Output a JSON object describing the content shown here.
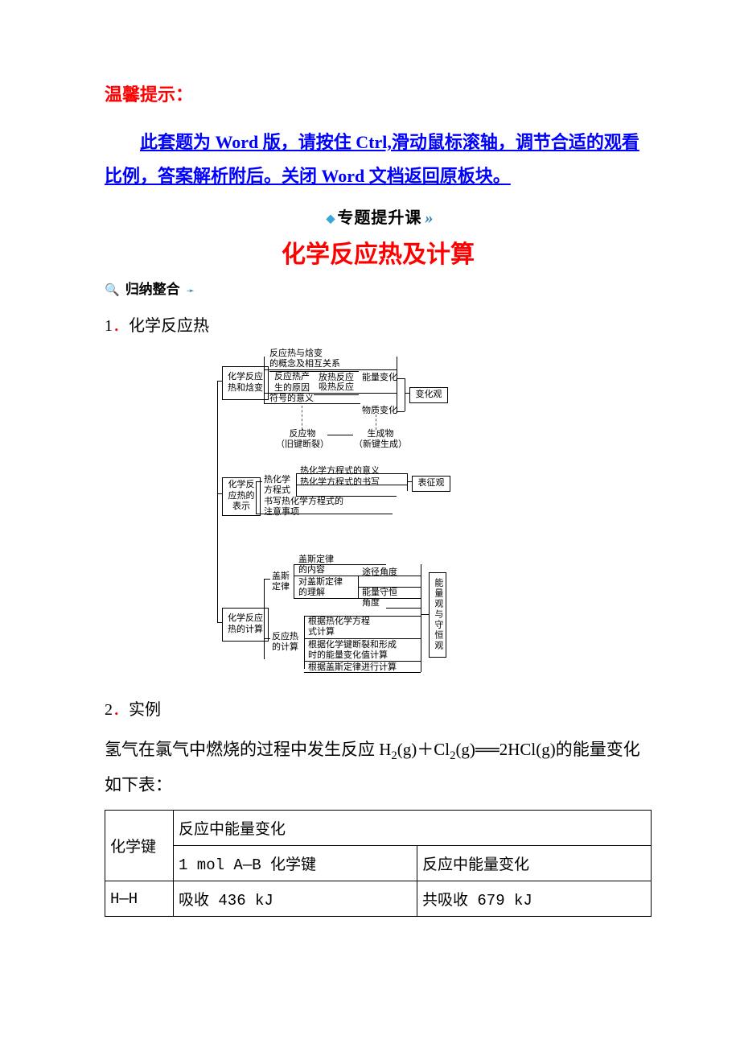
{
  "tip": {
    "heading": "温馨提示：",
    "body": "此套题为 Word 版，请按住 Ctrl,滑动鼠标滚轴，调节合适的观看比例，答案解析附后。关闭 Word 文档返回原板块。"
  },
  "banner": {
    "diamond": "◆",
    "text": "专题提升课",
    "chevrons": "»"
  },
  "title_main": "化学反应热及计算",
  "subheading": {
    "mag": "🔍",
    "text": "归纳整合",
    "arrow": "➛"
  },
  "item1": {
    "num": "1",
    "dot": "．",
    "text": "化学反应热"
  },
  "item2": {
    "num": "2",
    "dot": "．",
    "text": "实例"
  },
  "example_para_pre": "氢气在氯气中燃烧的过程中发生反应 H",
  "example_para_mid1": "(g)＋Cl",
  "example_para_mid2": "(g)",
  "example_para_eq": "══",
  "example_para_post": "2HCl(g)的能量变化如下表：",
  "table": {
    "h1": "化学键",
    "h2": "反应中能量变化",
    "h3": "1 mol A—B 化学键",
    "h4": "反应中能量变化",
    "r1c1": "H—H",
    "r1c2": "吸收 436 kJ",
    "r1c3": "共吸收 679 kJ"
  },
  "diagram": {
    "b1": "化学反应\n热和焓变",
    "l1a": "反应热与焓变\n的概念及相互关系",
    "l1b": "反应热产\n生的原因",
    "l1b_r1": "放热反应",
    "l1b_r2": "吸热反应",
    "l1c": "符号的意义",
    "r1a": "能量变化",
    "r1b": "物质变化",
    "rbox1": "变化观",
    "mid_l": "反应物\n（旧键断裂）",
    "mid_r": "生成物\n（新键生成）",
    "b2": "化学反\n应热的\n表示",
    "l2a": "热化学\n方程式",
    "l2a_r1": "热化学方程式的意义",
    "l2a_r2": "热化学方程式的书写",
    "l2b": "书写热化学方程式的\n注意事项",
    "rbox2": "表征观",
    "b3": "化学反应\n热的计算",
    "l3a": "盖斯\n定律",
    "l3a_r1": "盖斯定律\n的内容",
    "l3a_r2": "对盖斯定律\n的理解",
    "l3a_r2_r1": "途径角度",
    "l3a_r2_r2": "能量守恒\n角度",
    "l3b": "反应热\n的计算",
    "l3b_r1": "根据热化学方程\n式计算",
    "l3b_r2": "根据化学键断裂和形成\n时的能量变化值计算",
    "l3b_r3": "根据盖斯定律进行计算",
    "rbox3": "能量观与守恒观"
  }
}
